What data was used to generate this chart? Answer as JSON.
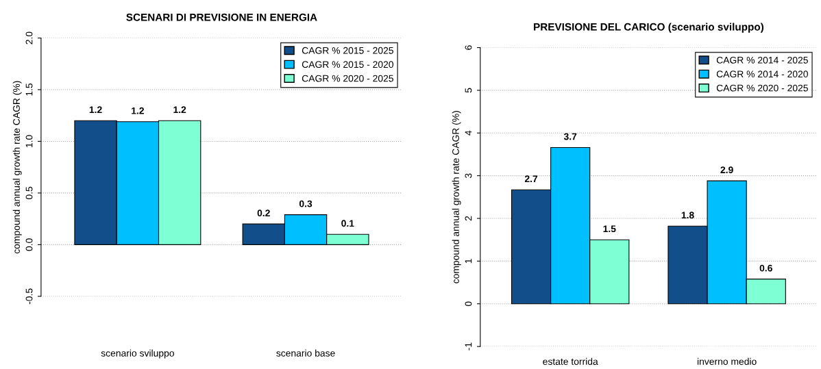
{
  "chart_data": [
    {
      "type": "bar",
      "title": "SCENARI DI PREVISIONE IN ENERGIA",
      "ylabel": "compound annual growth rate CAGR (%)",
      "categories": [
        "scenario sviluppo",
        "scenario base"
      ],
      "series": [
        {
          "name": "CAGR % 2015 - 2025",
          "color": "#124e89",
          "values": [
            1.2,
            0.2
          ],
          "value_labels": [
            "1.2",
            "0.2"
          ]
        },
        {
          "name": "CAGR % 2015 - 2020",
          "color": "#00bfff",
          "values": [
            1.19,
            0.29
          ],
          "value_labels": [
            "1.2",
            "0.3"
          ]
        },
        {
          "name": "CAGR % 2020 - 2025",
          "color": "#7fffd4",
          "values": [
            1.2,
            0.1
          ],
          "value_labels": [
            "1.2",
            "0.1"
          ]
        }
      ],
      "ylim": [
        -0.5,
        2.0
      ],
      "yticks": [
        {
          "value": -0.5,
          "label": "-0.5"
        },
        {
          "value": 0,
          "label": "0.0"
        },
        0.5,
        {
          "value": 1,
          "label": "1.0"
        },
        1.5,
        {
          "value": 2,
          "label": "2.0"
        }
      ],
      "grid": "y",
      "legend": "top right"
    },
    {
      "type": "bar",
      "title": "PREVISIONE DEL CARICO (scenario sviluppo)",
      "ylabel": "compound annual growth rate CAGR (%)",
      "categories": [
        "estate torrida",
        "inverno medio"
      ],
      "series": [
        {
          "name": "CAGR % 2014 - 2025",
          "color": "#124e89",
          "values": [
            2.67,
            1.82
          ],
          "value_labels": [
            "2.7",
            "1.8"
          ]
        },
        {
          "name": "CAGR % 2014 - 2020",
          "color": "#00bfff",
          "values": [
            3.66,
            2.88
          ],
          "value_labels": [
            "3.7",
            "2.9"
          ]
        },
        {
          "name": "CAGR % 2020 - 2025",
          "color": "#7fffd4",
          "values": [
            1.5,
            0.58
          ],
          "value_labels": [
            "1.5",
            "0.6"
          ]
        }
      ],
      "ylim": [
        -1,
        6
      ],
      "yticks": [
        {
          "value": -1,
          "label": "-1"
        },
        0,
        1,
        2,
        3,
        4,
        5,
        6
      ],
      "grid": "y",
      "legend": "top right"
    }
  ]
}
